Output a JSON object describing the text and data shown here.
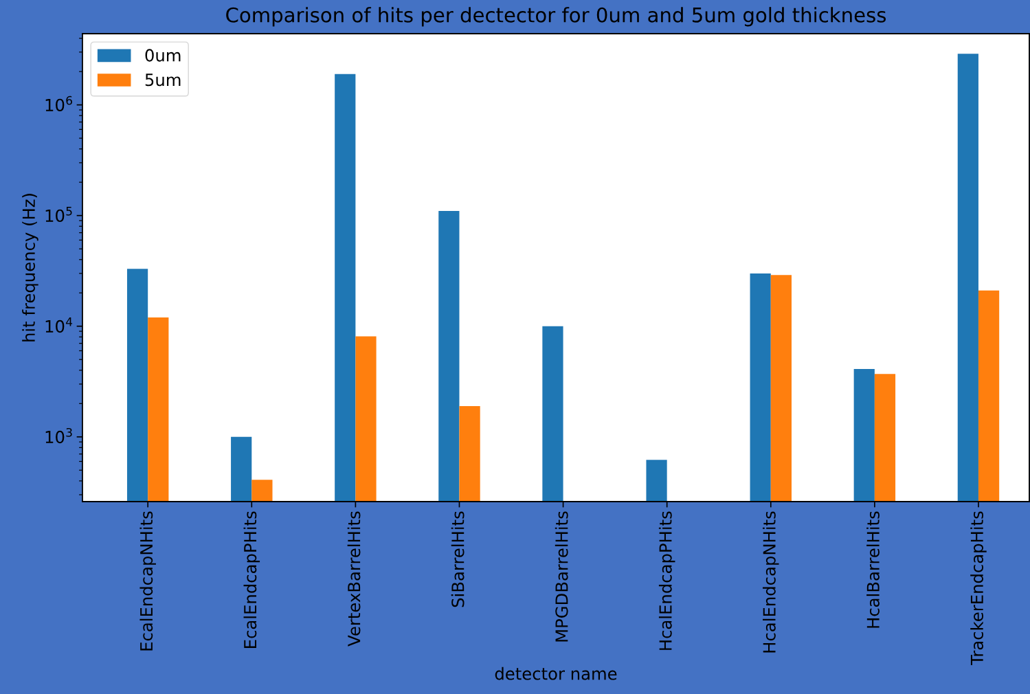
{
  "chart_data": {
    "type": "bar",
    "title": "Comparison of hits per dectector for 0um and 5um gold thickness",
    "xlabel": "detector name",
    "ylabel": "hit frequency (Hz)",
    "categories": [
      "EcalEndcapNHits",
      "EcalEndcapPHits",
      "VertexBarrelHits",
      "SiBarrelHits",
      "MPGDBarrelHits",
      "HcalEndcapPHits",
      "HcalEndcapNHits",
      "HcalBarrelHits",
      "TrackerEndcapHits"
    ],
    "series": [
      {
        "name": "0um",
        "color": "#1f77b4",
        "values": [
          33000,
          1000,
          1900000,
          110000,
          10000,
          620,
          30000,
          4100,
          2900000
        ]
      },
      {
        "name": "5um",
        "color": "#ff7f0e",
        "values": [
          12000,
          410,
          8100,
          1900,
          null,
          null,
          29000,
          3700,
          21000
        ]
      }
    ],
    "log": true,
    "ylim": [
      260,
      4400000
    ],
    "yticks": [
      {
        "value": 1000,
        "label": "10$^{3}$"
      },
      {
        "value": 10000,
        "label": "10$^{4}$"
      },
      {
        "value": 100000,
        "label": "10$^{5}$"
      },
      {
        "value": 1000000,
        "label": "10$^{6}$"
      }
    ],
    "legend": "top left",
    "grid": false
  }
}
